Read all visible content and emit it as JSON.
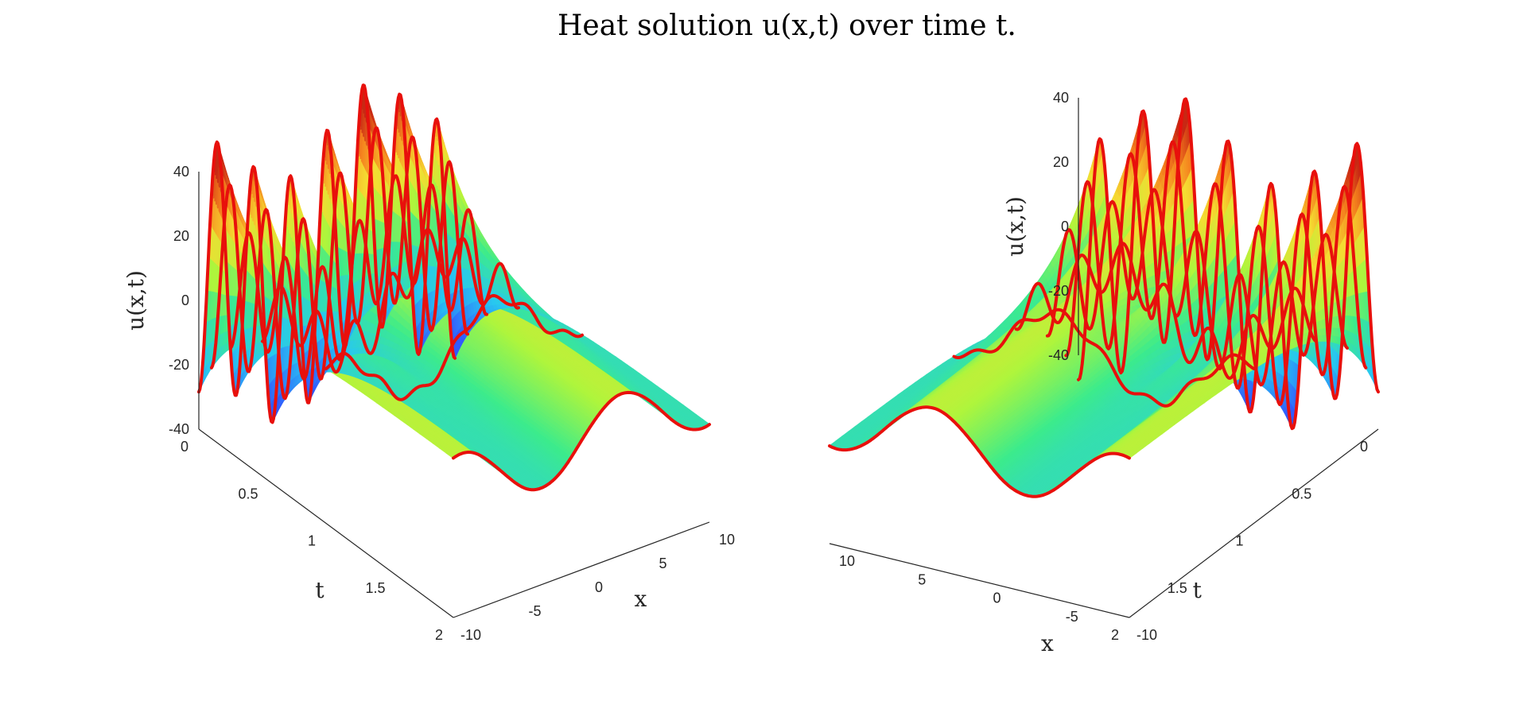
{
  "figure_title": "Heat solution u(x,t) over time t.",
  "chart_data": [
    {
      "type": "surface",
      "view": "x-axis front-right, t-axis front-left",
      "title": "",
      "xlabel": "x",
      "ylabel": "t",
      "zlabel": "u(x,t)",
      "xlim": [
        -10,
        10
      ],
      "ylim": [
        0,
        2
      ],
      "zlim": [
        -40,
        40
      ],
      "xticks": [
        "-10",
        "-5",
        "0",
        "5",
        "10"
      ],
      "yticks": [
        "0",
        "0.5",
        "1",
        "1.5",
        "2"
      ],
      "zticks": [
        "-40",
        "-20",
        "0",
        "20",
        "40"
      ],
      "surface_colormap": "jet-like (blue low, green mid, yellow-orange-red high)",
      "highlighted_time_slices": [
        0,
        0.1,
        0.25,
        0.5,
        1.0,
        2.0
      ],
      "curve_color": "#e8100c"
    },
    {
      "type": "surface",
      "view": "x-axis front-left (reversed), t-axis front-right",
      "title": "",
      "xlabel": "x",
      "ylabel": "t",
      "zlabel": "u(x,t)",
      "xlim": [
        -10,
        10
      ],
      "ylim": [
        0,
        2
      ],
      "zlim": [
        -40,
        40
      ],
      "xticks": [
        "-10",
        "-5",
        "0",
        "5",
        "10"
      ],
      "yticks": [
        "0",
        "0.5",
        "1",
        "1.5",
        "2"
      ],
      "zticks": [
        "-40",
        "-20",
        "0",
        "20",
        "40"
      ],
      "surface_colormap": "jet-like (blue low, green mid, yellow-orange-red high)",
      "highlighted_time_slices": [
        0,
        0.1,
        0.25,
        0.5,
        1.0,
        2.0
      ],
      "curve_color": "#e8100c"
    }
  ]
}
